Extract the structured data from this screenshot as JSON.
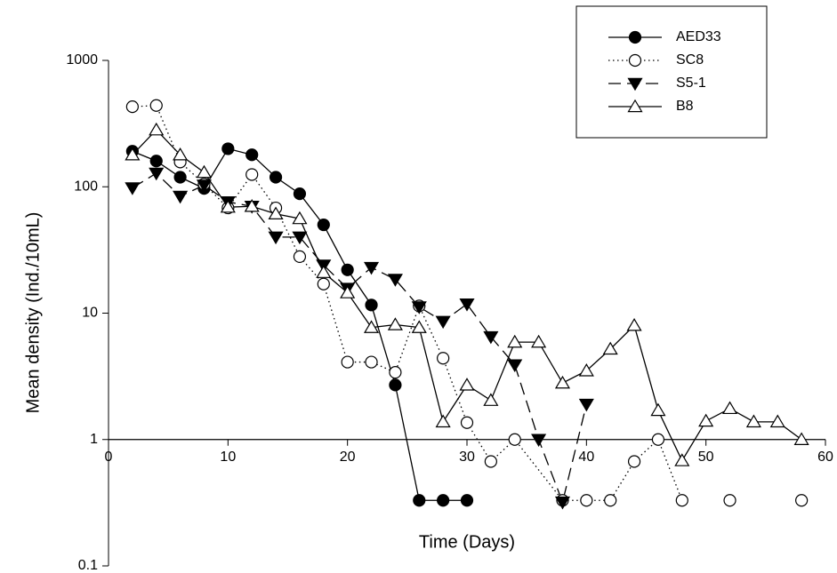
{
  "chart_data": {
    "type": "line",
    "x_label": "Time (Days)",
    "y_label": "Mean density (Ind./10mL)",
    "xlim": [
      0,
      60
    ],
    "xticks": [
      0,
      10,
      20,
      30,
      40,
      50,
      60
    ],
    "ylim": [
      0.1,
      1000
    ],
    "yticks": [
      0.1,
      1,
      10,
      100,
      1000
    ],
    "y_scale": "log",
    "x_axis_crosses": 1,
    "grid": false,
    "legend": "top-right",
    "series": [
      {
        "name": "AED33",
        "color": "#000000",
        "marker": "circle",
        "marker_fill": true,
        "line_style": "solid",
        "x": [
          2,
          4,
          6,
          8,
          10,
          12,
          14,
          16,
          18,
          20,
          22,
          24,
          26,
          28,
          30
        ],
        "values": [
          191,
          160,
          119,
          97,
          200,
          179,
          119,
          88,
          50,
          22,
          11.6,
          2.7,
          0.33,
          0.33,
          0.33
        ]
      },
      {
        "name": "SC8",
        "color": "#000000",
        "marker": "circle",
        "marker_fill": false,
        "line_style": "dotted",
        "x": [
          2,
          4,
          6,
          8,
          10,
          12,
          14,
          16,
          18,
          20,
          22,
          24,
          26,
          28,
          30,
          32,
          34,
          38,
          40,
          42,
          44,
          46,
          48,
          50,
          52,
          54,
          56,
          58
        ],
        "values": [
          430,
          440,
          157,
          105,
          68,
          125,
          68,
          28,
          17,
          4.1,
          4.1,
          3.4,
          11.4,
          4.4,
          1.36,
          0.67,
          1,
          0.33,
          0.33,
          0.33,
          0.67,
          1,
          0.33,
          null,
          0.33,
          null,
          null,
          0.33
        ]
      },
      {
        "name": "S5-1",
        "color": "#000000",
        "marker": "triangle-down",
        "marker_fill": true,
        "line_style": "dashed",
        "x": [
          2,
          4,
          6,
          8,
          10,
          12,
          14,
          16,
          18,
          20,
          22,
          24,
          26,
          28,
          30,
          32,
          34,
          36,
          38,
          40
        ],
        "values": [
          98,
          128,
          84,
          103,
          76,
          70,
          40,
          40,
          24,
          15.7,
          23,
          18.5,
          11.2,
          8.6,
          11.8,
          6.5,
          3.9,
          1,
          0.32,
          1.9
        ]
      },
      {
        "name": "B8",
        "color": "#000000",
        "marker": "triangle-up",
        "marker_fill": false,
        "line_style": "solid",
        "x": [
          2,
          4,
          6,
          8,
          10,
          12,
          14,
          16,
          18,
          20,
          22,
          24,
          26,
          28,
          30,
          32,
          34,
          36,
          38,
          40,
          42,
          44,
          46,
          48,
          50,
          52,
          54,
          56,
          58
        ],
        "values": [
          179,
          282,
          179,
          130,
          69,
          70,
          61,
          56,
          21,
          14.5,
          7.7,
          8.1,
          7.7,
          1.38,
          2.7,
          2.04,
          5.9,
          5.9,
          2.8,
          3.5,
          5.2,
          8.0,
          1.7,
          0.68,
          1.4,
          1.76,
          1.38,
          1.38,
          1.0
        ]
      }
    ]
  }
}
